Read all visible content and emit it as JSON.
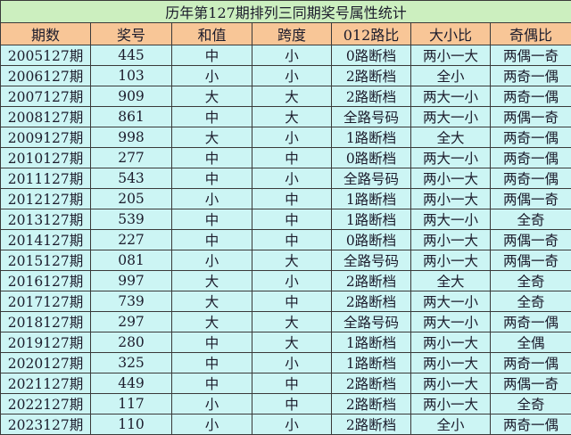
{
  "title": "历年第127期排列三同期奖号属性统计",
  "headers": [
    "期数",
    "奖号",
    "和值",
    "跨度",
    "012路比",
    "大小比",
    "奇偶比"
  ],
  "rows": [
    [
      "2005127期",
      "445",
      "中",
      "小",
      "0路断档",
      "两小一大",
      "两偶一奇"
    ],
    [
      "2006127期",
      "103",
      "小",
      "小",
      "2路断档",
      "全小",
      "两奇一偶"
    ],
    [
      "2007127期",
      "909",
      "大",
      "大",
      "2路断档",
      "两大一小",
      "两奇一偶"
    ],
    [
      "2008127期",
      "861",
      "中",
      "大",
      "全路号码",
      "两大一小",
      "两偶一奇"
    ],
    [
      "2009127期",
      "998",
      "大",
      "小",
      "1路断档",
      "全大",
      "两奇一偶"
    ],
    [
      "2010127期",
      "277",
      "中",
      "中",
      "0路断档",
      "两大一小",
      "两奇一偶"
    ],
    [
      "2011127期",
      "543",
      "中",
      "小",
      "全路号码",
      "两小一大",
      "两奇一偶"
    ],
    [
      "2012127期",
      "205",
      "小",
      "中",
      "1路断档",
      "两小一大",
      "两偶一奇"
    ],
    [
      "2013127期",
      "539",
      "中",
      "中",
      "1路断档",
      "两大一小",
      "全奇"
    ],
    [
      "2014127期",
      "227",
      "中",
      "中",
      "0路断档",
      "两小一大",
      "两偶一奇"
    ],
    [
      "2015127期",
      "081",
      "小",
      "大",
      "全路号码",
      "两小一大",
      "两偶一奇"
    ],
    [
      "2016127期",
      "997",
      "大",
      "小",
      "2路断档",
      "全大",
      "全奇"
    ],
    [
      "2017127期",
      "739",
      "大",
      "中",
      "2路断档",
      "两大一小",
      "全奇"
    ],
    [
      "2018127期",
      "297",
      "大",
      "大",
      "全路号码",
      "两大一小",
      "两奇一偶"
    ],
    [
      "2019127期",
      "280",
      "中",
      "大",
      "1路断档",
      "两小一大",
      "全偶"
    ],
    [
      "2020127期",
      "325",
      "中",
      "小",
      "1路断档",
      "两小一大",
      "两奇一偶"
    ],
    [
      "2021127期",
      "449",
      "中",
      "中",
      "2路断档",
      "两小一大",
      "两偶一奇"
    ],
    [
      "2022127期",
      "117",
      "小",
      "中",
      "2路断档",
      "两小一大",
      "全奇"
    ],
    [
      "2023127期",
      "110",
      "小",
      "小",
      "2路断档",
      "全小",
      "两奇一偶"
    ]
  ],
  "colors": {
    "title_bg": "#ccefbf",
    "header_bg": "#f8c697",
    "row_bg": "#ccf5f4"
  }
}
